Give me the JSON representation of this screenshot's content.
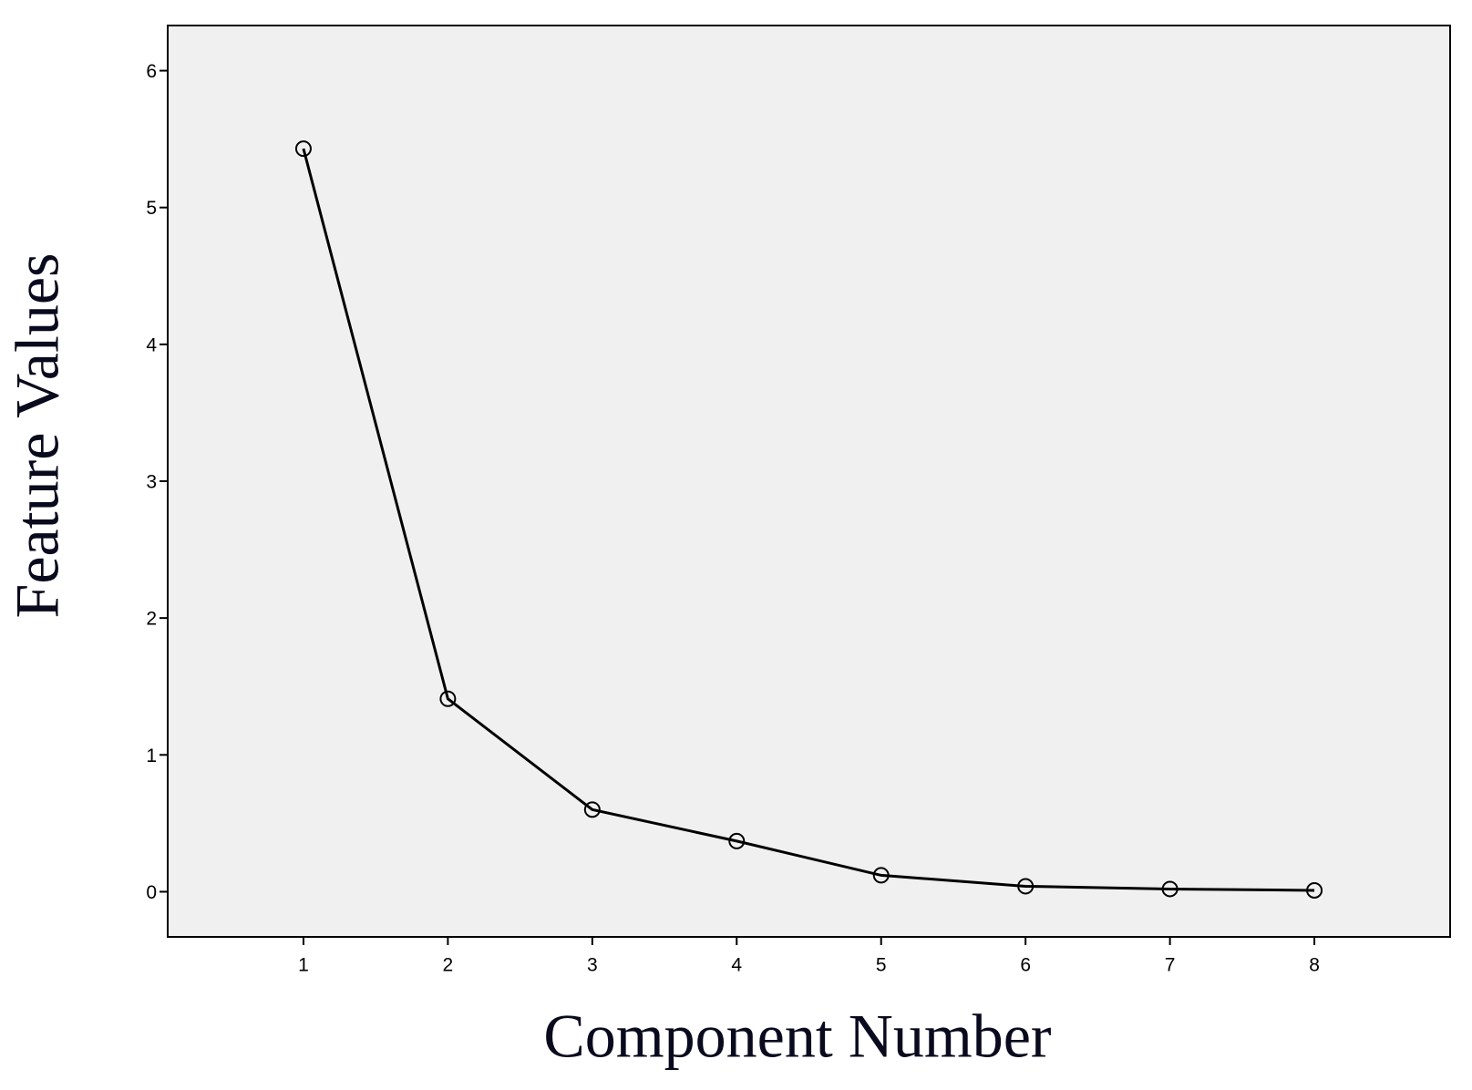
{
  "chart_data": {
    "type": "line",
    "x_label": "Component Number",
    "y_label": "Feature Values",
    "x": [
      1,
      2,
      3,
      4,
      5,
      6,
      7,
      8
    ],
    "series": [
      {
        "color": "#000000",
        "values": [
          5.43,
          1.41,
          0.6,
          0.37,
          0.12,
          0.04,
          0.02,
          0.01
        ]
      }
    ],
    "xlim": [
      0.06,
      8.94
    ],
    "xticks": [
      1,
      2,
      3,
      4,
      5,
      6,
      7,
      8
    ],
    "ylim": [
      -0.33,
      6.33
    ],
    "yticks": [
      0,
      1,
      2,
      3,
      4,
      5,
      6
    ],
    "grid": false,
    "marker": "open-circle",
    "plot_background": "#f0f0f0"
  }
}
